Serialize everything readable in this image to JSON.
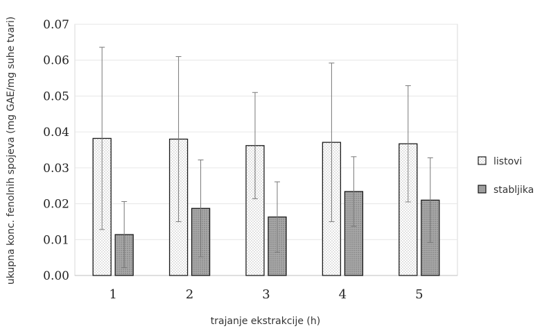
{
  "chart_data": {
    "type": "bar",
    "title": "",
    "xlabel": "trajanje ekstrakcije (h)",
    "ylabel": "ukupna konc. fenolnih spojeva (mg GAE/mg suhe tvari)",
    "categories": [
      "1",
      "2",
      "3",
      "4",
      "5"
    ],
    "ylim": [
      0,
      0.07
    ],
    "yticks": [
      "0.00",
      "0.01",
      "0.02",
      "0.03",
      "0.04",
      "0.05",
      "0.06",
      "0.07"
    ],
    "grid": true,
    "legend_position": "right",
    "series": [
      {
        "name": "listovi",
        "values": [
          0.0382,
          0.038,
          0.0362,
          0.0371,
          0.0367
        ],
        "error": [
          0.0254,
          0.023,
          0.0148,
          0.0221,
          0.0162
        ],
        "fill": "#ffffff",
        "dot": "#9a9a9a"
      },
      {
        "name": "stabljika",
        "values": [
          0.0114,
          0.0187,
          0.0163,
          0.0234,
          0.021
        ],
        "error": [
          0.0092,
          0.0135,
          0.0098,
          0.0097,
          0.0118
        ],
        "fill": "#a9a9a9",
        "dot": "#6e6e6e"
      }
    ]
  }
}
